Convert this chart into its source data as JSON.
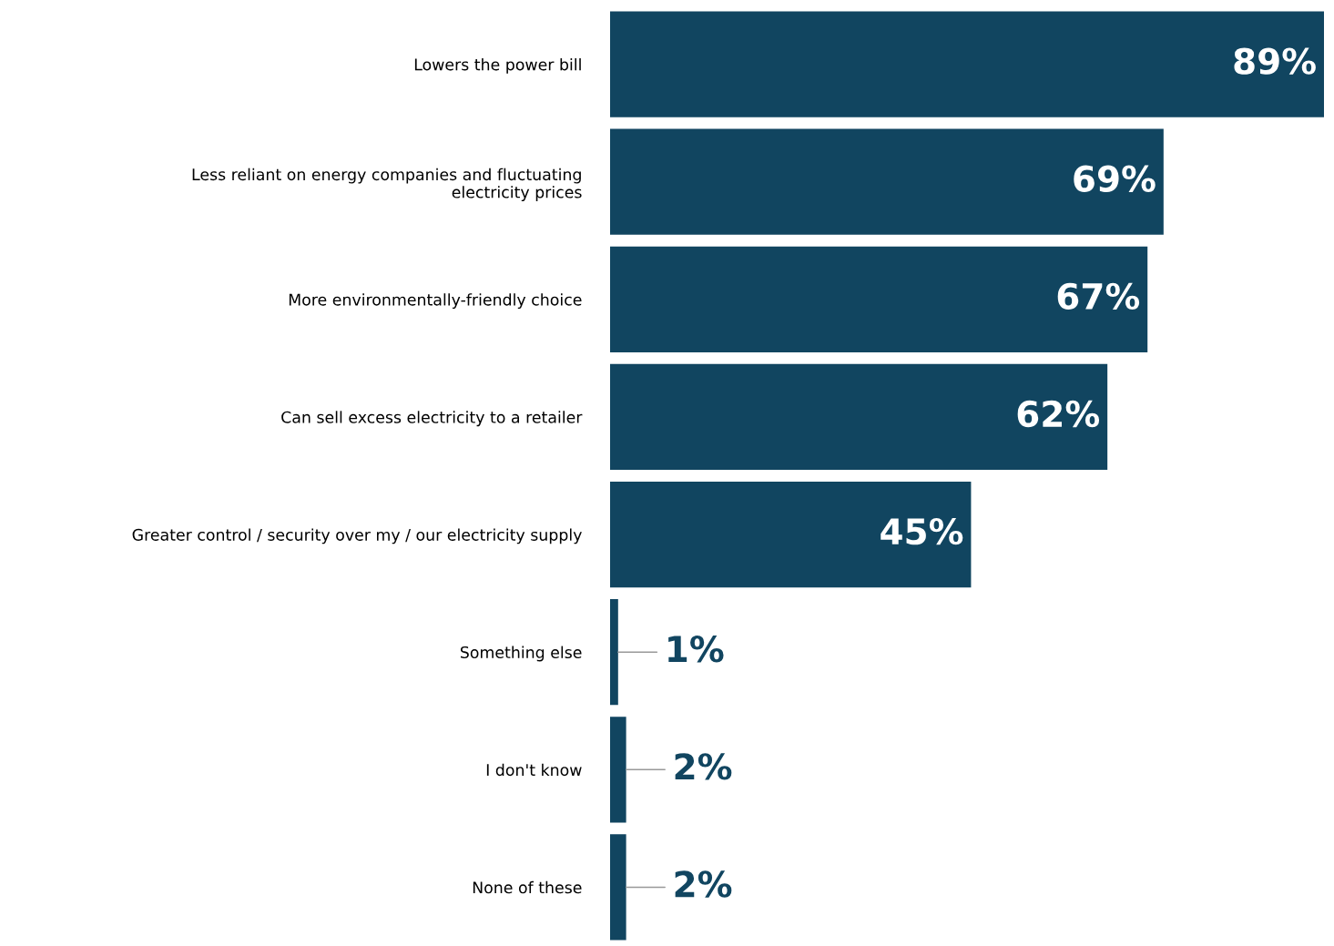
{
  "chart_data": {
    "type": "bar",
    "orientation": "horizontal",
    "categories": [
      "Lowers the power bill",
      "Less reliant on energy companies and fluctuating\nelectricity prices",
      "More environmentally-friendly choice",
      "Can sell excess electricity to a retailer",
      "Greater control / security over my / our electricity supply",
      "Something else",
      "I don't know",
      "None of these"
    ],
    "values": [
      89,
      69,
      67,
      62,
      45,
      1,
      2,
      2
    ],
    "value_labels": [
      "89%",
      "69%",
      "67%",
      "62%",
      "45%",
      "1%",
      "2%",
      "2%"
    ],
    "color": "#114560",
    "grid": false,
    "legend": false
  }
}
